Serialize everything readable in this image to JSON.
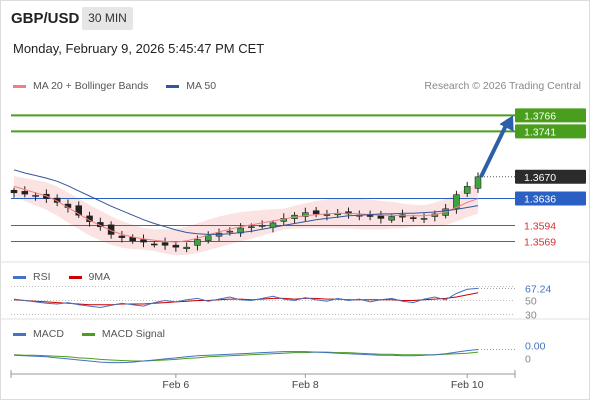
{
  "header": {
    "symbol": "GBP/USD",
    "timeframe": "30 MIN",
    "datetime": "Monday, February 9, 2026 5:45:47 PM CET"
  },
  "main_legend": {
    "items": [
      {
        "label": "MA 20 + Bollinger Bands",
        "color": "#f08080"
      },
      {
        "label": "MA 50",
        "color": "#33559a"
      }
    ],
    "credit": "Research © 2026 Trading Central"
  },
  "chart_data": [
    {
      "type": "candlestick",
      "panel": "price",
      "ylim": [
        1.354,
        1.379
      ],
      "levels": [
        {
          "value": 1.3766,
          "label": "1.3766",
          "color": "#4a9e1e",
          "kind": "resistance"
        },
        {
          "value": 1.3741,
          "label": "1.3741",
          "color": "#4a9e1e",
          "kind": "resistance"
        },
        {
          "value": 1.367,
          "label": "1.3670",
          "color": "#2b2b2b",
          "kind": "last"
        },
        {
          "value": 1.3636,
          "label": "1.3636",
          "color": "#2a5fc4",
          "kind": "pivot"
        },
        {
          "value": 1.3594,
          "label": "1.3594",
          "color": "#d63030",
          "kind": "support"
        },
        {
          "value": 1.3569,
          "label": "1.3569",
          "color": "#d63030",
          "kind": "support"
        }
      ],
      "close_path": [
        1.3645,
        1.3643,
        1.3641,
        1.3636,
        1.363,
        1.3622,
        1.361,
        1.36,
        1.3592,
        1.358,
        1.3575,
        1.357,
        1.3568,
        1.3565,
        1.3563,
        1.356,
        1.356,
        1.3572,
        1.3578,
        1.3582,
        1.3585,
        1.359,
        1.3592,
        1.3594,
        1.3598,
        1.3605,
        1.361,
        1.3614,
        1.3612,
        1.3611,
        1.3613,
        1.3612,
        1.361,
        1.3608,
        1.3605,
        1.3608,
        1.3607,
        1.3606,
        1.3605,
        1.3612,
        1.362,
        1.3642,
        1.3655,
        1.367
      ],
      "ma20": [
        1.3655,
        1.365,
        1.3645,
        1.364,
        1.3632,
        1.3622,
        1.3612,
        1.3602,
        1.3594,
        1.3586,
        1.358,
        1.3576,
        1.3573,
        1.3571,
        1.3569,
        1.3568,
        1.357,
        1.3574,
        1.3579,
        1.3584,
        1.3588,
        1.3592,
        1.3595,
        1.3598,
        1.3601,
        1.3604,
        1.3607,
        1.3609,
        1.3611,
        1.3612,
        1.3613,
        1.3613,
        1.3612,
        1.3611,
        1.361,
        1.361,
        1.3609,
        1.3609,
        1.3609,
        1.3611,
        1.3615,
        1.3622,
        1.363,
        1.3636
      ],
      "ma50": [
        1.3681,
        1.3676,
        1.3672,
        1.3668,
        1.3663,
        1.3656,
        1.3648,
        1.364,
        1.3632,
        1.3624,
        1.3617,
        1.361,
        1.3603,
        1.3597,
        1.3592,
        1.3587,
        1.3583,
        1.3581,
        1.358,
        1.358,
        1.3581,
        1.3583,
        1.3585,
        1.3588,
        1.3591,
        1.3594,
        1.3597,
        1.36,
        1.3603,
        1.3605,
        1.3607,
        1.3609,
        1.361,
        1.3611,
        1.3612,
        1.3612,
        1.3613,
        1.3613,
        1.3614,
        1.3615,
        1.3617,
        1.3619,
        1.3622,
        1.3625
      ],
      "forecast_arrow": {
        "from": 1.367,
        "to": 1.3766
      }
    },
    {
      "type": "line",
      "panel": "rsi",
      "legend": [
        {
          "label": "RSI",
          "color": "#4472c4"
        },
        {
          "label": "9MA",
          "color": "#cc0000"
        }
      ],
      "ylim": [
        25,
        75
      ],
      "reference_lines": [
        70,
        50,
        30
      ],
      "tick_labels": [
        "50",
        "30"
      ],
      "last_value": 67.24,
      "last_label": "67.24",
      "rsi": [
        52,
        50,
        48,
        46,
        45,
        47,
        44,
        42,
        40,
        43,
        46,
        44,
        42,
        47,
        50,
        48,
        51,
        53,
        49,
        52,
        55,
        51,
        50,
        53,
        56,
        52,
        50,
        54,
        51,
        49,
        53,
        50,
        52,
        48,
        51,
        53,
        49,
        47,
        52,
        55,
        51,
        60,
        66,
        67.24
      ],
      "ma9": [
        51,
        50,
        49,
        48,
        47,
        46,
        45,
        44,
        44,
        44,
        45,
        45,
        45,
        46,
        47,
        48,
        49,
        50,
        50,
        51,
        52,
        52,
        51,
        52,
        53,
        53,
        52,
        53,
        53,
        52,
        52,
        51,
        51,
        51,
        51,
        51,
        50,
        50,
        51,
        52,
        53,
        55,
        58,
        61
      ]
    },
    {
      "type": "line",
      "panel": "macd",
      "legend": [
        {
          "label": "MACD",
          "color": "#4472c4"
        },
        {
          "label": "MACD Signal",
          "color": "#4a9e1e"
        }
      ],
      "ylim": [
        -0.003,
        0.0035
      ],
      "tick_labels": [
        "0"
      ],
      "last_value": 0.0,
      "last_label": "0.00",
      "macd": [
        0.0002,
        0.0001,
        0.0,
        -0.0001,
        -0.0003,
        -0.0005,
        -0.0007,
        -0.0009,
        -0.0011,
        -0.0012,
        -0.0012,
        -0.0011,
        -0.0009,
        -0.0007,
        -0.0005,
        -0.0003,
        -0.0001,
        0.0001,
        0.0002,
        0.0003,
        0.0004,
        0.0005,
        0.0006,
        0.0007,
        0.0008,
        0.0009,
        0.0009,
        0.0009,
        0.0008,
        0.0007,
        0.0006,
        0.0005,
        0.0004,
        0.0003,
        0.0002,
        0.0002,
        0.0001,
        0.0001,
        0.0002,
        0.0003,
        0.0005,
        0.0008,
        0.0011,
        0.0013
      ],
      "signal": [
        0.0003,
        0.0002,
        0.0002,
        0.0001,
        0.0,
        -0.0001,
        -0.0003,
        -0.0004,
        -0.0006,
        -0.0007,
        -0.0008,
        -0.0009,
        -0.0009,
        -0.0008,
        -0.0007,
        -0.0006,
        -0.0004,
        -0.0003,
        -0.0001,
        0.0,
        0.0001,
        0.0002,
        0.0003,
        0.0004,
        0.0005,
        0.0006,
        0.0007,
        0.0007,
        0.0008,
        0.0008,
        0.0007,
        0.0007,
        0.0006,
        0.0005,
        0.0004,
        0.0004,
        0.0003,
        0.0003,
        0.0003,
        0.0003,
        0.0004,
        0.0005,
        0.0006,
        0.0008
      ]
    }
  ],
  "xaxis": {
    "ticks": [
      {
        "label": "Feb 6",
        "index": 15
      },
      {
        "label": "Feb 8",
        "index": 27
      },
      {
        "label": "Feb 10",
        "index": 42
      }
    ]
  }
}
